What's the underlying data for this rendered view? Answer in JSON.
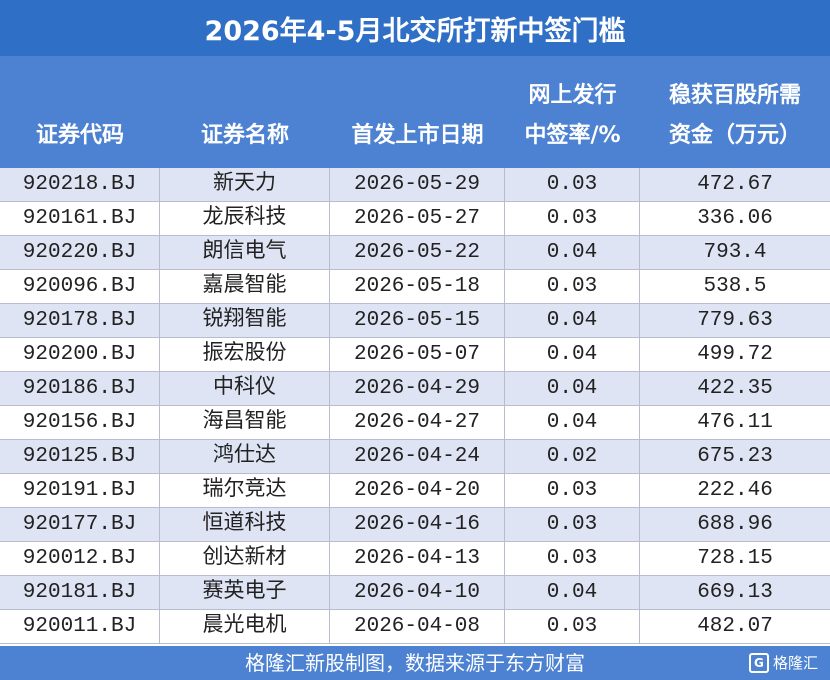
{
  "title": "2026年4-5月北交所打新中签门槛",
  "table": {
    "headers": [
      [
        "证券代码"
      ],
      [
        "证券名称"
      ],
      [
        "首发上市日期"
      ],
      [
        "网上发行",
        "中签率/%"
      ],
      [
        "稳获百股所需",
        "资金（万元）"
      ]
    ],
    "rows": [
      [
        "920218.BJ",
        "新天力",
        "2026-05-29",
        "0.03",
        "472.67"
      ],
      [
        "920161.BJ",
        "龙辰科技",
        "2026-05-27",
        "0.03",
        "336.06"
      ],
      [
        "920220.BJ",
        "朗信电气",
        "2026-05-22",
        "0.04",
        "793.4"
      ],
      [
        "920096.BJ",
        "嘉晨智能",
        "2026-05-18",
        "0.03",
        "538.5"
      ],
      [
        "920178.BJ",
        "锐翔智能",
        "2026-05-15",
        "0.04",
        "779.63"
      ],
      [
        "920200.BJ",
        "振宏股份",
        "2026-05-07",
        "0.04",
        "499.72"
      ],
      [
        "920186.BJ",
        "中科仪",
        "2026-04-29",
        "0.04",
        "422.35"
      ],
      [
        "920156.BJ",
        "海昌智能",
        "2026-04-27",
        "0.04",
        "476.11"
      ],
      [
        "920125.BJ",
        "鸿仕达",
        "2026-04-24",
        "0.02",
        "675.23"
      ],
      [
        "920191.BJ",
        "瑞尔竞达",
        "2026-04-20",
        "0.03",
        "222.46"
      ],
      [
        "920177.BJ",
        "恒道科技",
        "2026-04-16",
        "0.03",
        "688.96"
      ],
      [
        "920012.BJ",
        "创达新材",
        "2026-04-13",
        "0.03",
        "728.15"
      ],
      [
        "920181.BJ",
        "赛英电子",
        "2026-04-10",
        "0.04",
        "669.13"
      ],
      [
        "920011.BJ",
        "晨光电机",
        "2026-04-08",
        "0.03",
        "482.07"
      ]
    ]
  },
  "footer": {
    "source": "格隆汇新股制图，数据来源于东方财富",
    "logo": "格隆汇"
  }
}
